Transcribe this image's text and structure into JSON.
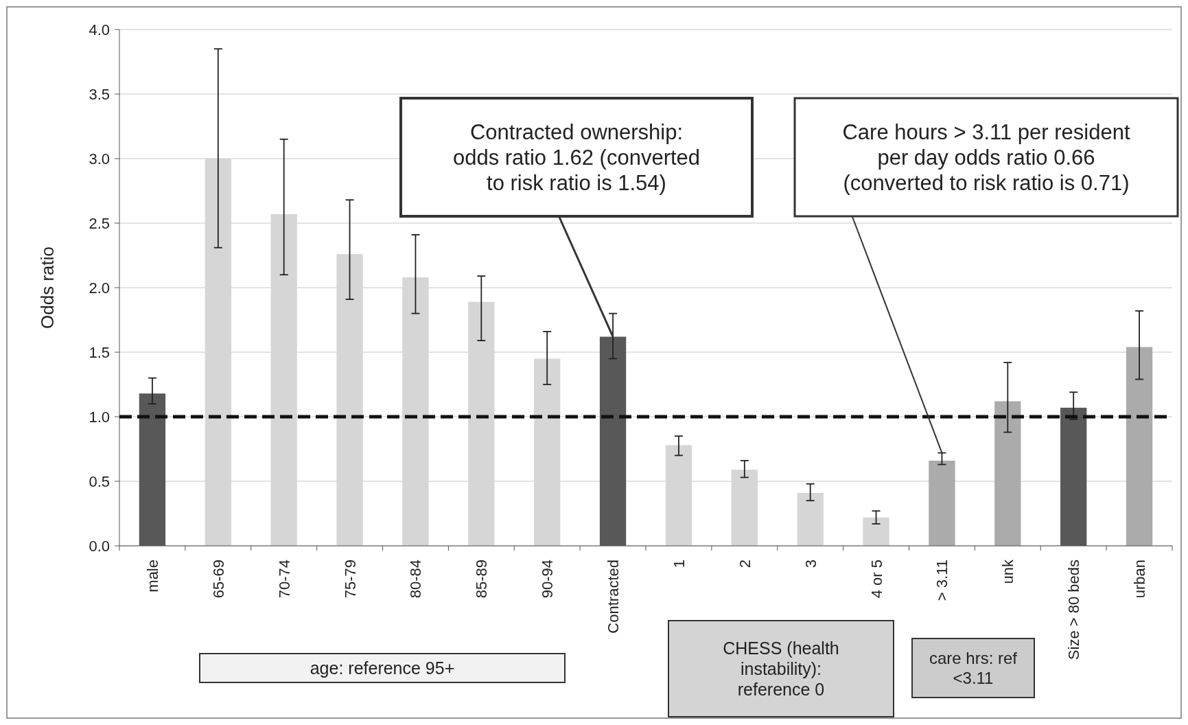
{
  "chart_data": {
    "type": "bar",
    "ylabel": "Odds ratio",
    "categories": [
      "male",
      "65-69",
      "70-74",
      "75-79",
      "80-84",
      "85-89",
      "90-94",
      "Contracted",
      "1",
      "2",
      "3",
      "4 or 5",
      "> 3.11",
      "unk",
      "Size > 80 beds",
      "urban"
    ],
    "values": [
      1.18,
      3.0,
      2.57,
      2.26,
      2.08,
      1.89,
      1.45,
      1.62,
      0.78,
      0.59,
      0.41,
      0.22,
      0.66,
      1.12,
      1.07,
      1.54
    ],
    "colors": [
      "#585858",
      "#d6d6d6",
      "#d6d6d6",
      "#d6d6d6",
      "#d6d6d6",
      "#d6d6d6",
      "#d6d6d6",
      "#585858",
      "#d6d6d6",
      "#d6d6d6",
      "#d6d6d6",
      "#d6d6d6",
      "#ababab",
      "#ababab",
      "#585858",
      "#ababab"
    ],
    "errors": [
      [
        1.1,
        1.3
      ],
      [
        2.31,
        3.85
      ],
      [
        2.1,
        3.15
      ],
      [
        1.91,
        2.68
      ],
      [
        1.8,
        2.41
      ],
      [
        1.59,
        2.09
      ],
      [
        1.25,
        1.66
      ],
      [
        1.45,
        1.8
      ],
      [
        0.7,
        0.85
      ],
      [
        0.53,
        0.66
      ],
      [
        0.35,
        0.48
      ],
      [
        0.17,
        0.27
      ],
      [
        0.63,
        0.72
      ],
      [
        0.88,
        1.42
      ],
      [
        0.98,
        1.19
      ],
      [
        1.29,
        1.82
      ]
    ],
    "ylim": [
      0,
      4
    ],
    "yticks": [
      {
        "value": 0,
        "label": "0.0"
      },
      {
        "value": 0.5,
        "label": "0.5"
      },
      {
        "value": 1,
        "label": "1.0"
      },
      {
        "value": 1.5,
        "label": "1.5"
      },
      {
        "value": 2,
        "label": "2.0"
      },
      {
        "value": 2.5,
        "label": "2.5"
      },
      {
        "value": 3,
        "label": "3.0"
      },
      {
        "value": 3.5,
        "label": "3.5"
      },
      {
        "value": 4,
        "label": "4.0"
      }
    ],
    "grid": "y",
    "ref_lines": [
      {
        "axis": "y",
        "value": 1,
        "color": "#111111",
        "line_style": "dashed"
      }
    ],
    "annotations": [
      {
        "text": "Contracted ownership:\nodds ratio 1.62 (converted\nto risk ratio is 1.54)",
        "x": "Contracted",
        "y": 1.62
      },
      {
        "text": "Care hours > 3.11 per resident\nper day odds ratio 0.66\n(converted to risk ratio is 0.71)",
        "x": "> 3.11",
        "y": 0.72
      },
      "age: reference 95+",
      "CHESS (health\ninstability):\nreference 0",
      "care hrs: ref\n<3.11"
    ]
  }
}
